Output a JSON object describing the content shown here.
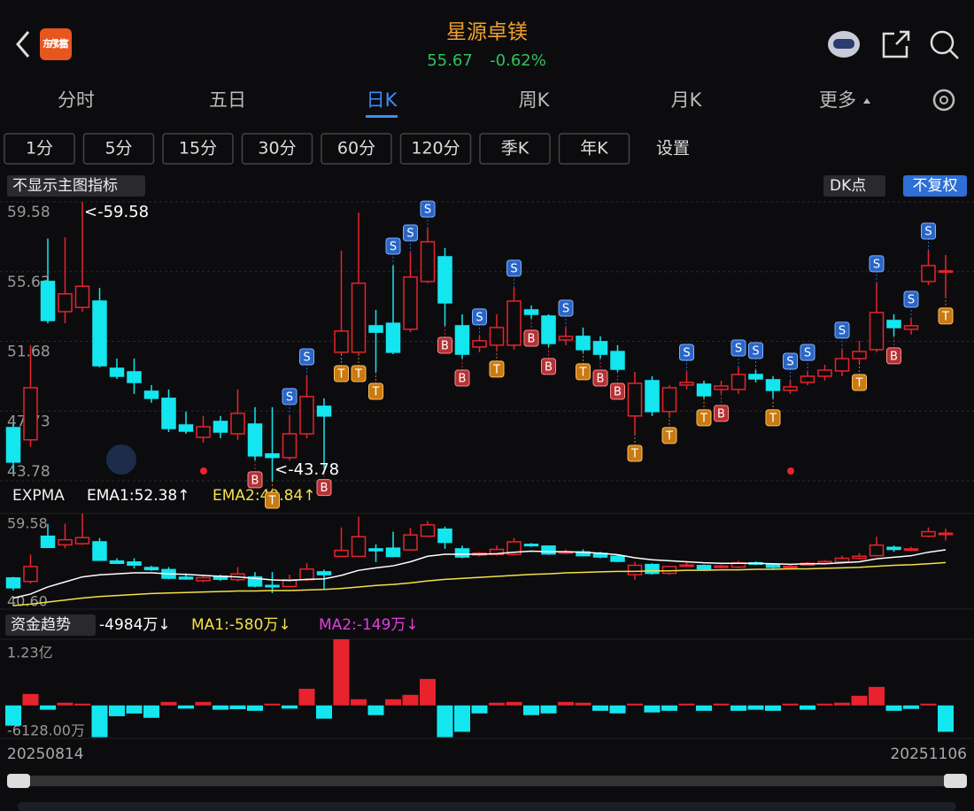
{
  "header": {
    "logo": "东方财富",
    "title": "星源卓镁",
    "price": "55.67",
    "change": "-0.62%"
  },
  "tabs": [
    "分时",
    "五日",
    "日K",
    "周K",
    "月K",
    "更多"
  ],
  "periods": [
    "1分",
    "5分",
    "15分",
    "30分",
    "60分",
    "120分",
    "季K",
    "年K",
    "设置"
  ],
  "toolbar": {
    "indicator": "不显示主图指标",
    "dk": "DK点",
    "adjust": "不复权"
  },
  "main_chart": {
    "type": "candlestick",
    "ylim": [
      43.78,
      59.58
    ],
    "yticks": [
      59.58,
      55.63,
      51.68,
      47.73,
      43.78
    ],
    "annotations": [
      "<-59.58",
      "<-43.78"
    ],
    "candles": [
      [
        46.79,
        47.0,
        44.3,
        44.84
      ],
      [
        46.1,
        51.46,
        45.7,
        49.05
      ],
      [
        55.07,
        57.5,
        52.7,
        52.86
      ],
      [
        53.36,
        57.57,
        52.7,
        54.37
      ],
      [
        53.6,
        59.58,
        53.36,
        54.8
      ],
      [
        53.96,
        54.7,
        50.2,
        50.3
      ],
      [
        50.15,
        50.7,
        49.55,
        49.7
      ],
      [
        49.95,
        50.7,
        48.7,
        49.35
      ],
      [
        48.85,
        49.2,
        48.2,
        48.45
      ],
      [
        48.45,
        48.95,
        46.54,
        46.74
      ],
      [
        46.94,
        47.7,
        46.44,
        46.59
      ],
      [
        46.24,
        47.45,
        45.94,
        46.84
      ],
      [
        47.14,
        47.45,
        46.19,
        46.54
      ],
      [
        46.44,
        48.95,
        46.1,
        47.6
      ],
      [
        46.99,
        47.95,
        44.94,
        45.19
      ],
      [
        45.3,
        47.95,
        43.78,
        45.1
      ],
      [
        45.09,
        47.45,
        44.94,
        46.44
      ],
      [
        46.44,
        49.7,
        46.19,
        48.55
      ],
      [
        48.0,
        48.45,
        44.5,
        47.45
      ],
      [
        51.06,
        56.82,
        50.95,
        52.26
      ],
      [
        51.06,
        58.97,
        50.95,
        54.97
      ],
      [
        52.56,
        53.46,
        49.95,
        52.2
      ],
      [
        52.7,
        55.97,
        50.95,
        51.06
      ],
      [
        52.36,
        56.72,
        52.2,
        55.32
      ],
      [
        55.07,
        58.07,
        54.97,
        57.32
      ],
      [
        56.47,
        56.97,
        52.56,
        53.86
      ],
      [
        52.56,
        53.21,
        50.7,
        50.95
      ],
      [
        51.36,
        51.96,
        51.06,
        51.71
      ],
      [
        51.46,
        53.21,
        51.21,
        52.46
      ],
      [
        51.46,
        54.72,
        51.21,
        53.96
      ],
      [
        53.46,
        53.71,
        52.96,
        53.21
      ],
      [
        53.11,
        53.21,
        51.36,
        51.56
      ],
      [
        51.76,
        52.46,
        51.46,
        51.96
      ],
      [
        51.96,
        52.46,
        51.06,
        51.21
      ],
      [
        51.66,
        51.96,
        50.7,
        50.95
      ],
      [
        51.1,
        51.46,
        49.95,
        50.1
      ],
      [
        47.45,
        49.95,
        46.44,
        49.3
      ],
      [
        49.45,
        49.7,
        47.45,
        47.7
      ],
      [
        47.7,
        49.2,
        47.45,
        49.05
      ],
      [
        49.2,
        49.95,
        48.95,
        49.35
      ],
      [
        49.25,
        49.45,
        48.45,
        48.6
      ],
      [
        48.95,
        49.45,
        48.7,
        49.15
      ],
      [
        48.95,
        50.2,
        48.7,
        49.8
      ],
      [
        49.8,
        50.05,
        49.35,
        49.55
      ],
      [
        49.5,
        49.7,
        48.45,
        48.9
      ],
      [
        48.9,
        49.45,
        48.7,
        49.1
      ],
      [
        49.35,
        49.95,
        49.2,
        49.7
      ],
      [
        49.7,
        50.35,
        49.45,
        50.05
      ],
      [
        50.0,
        51.21,
        49.7,
        50.7
      ],
      [
        50.7,
        51.7,
        50.45,
        51.1
      ],
      [
        51.21,
        54.97,
        51.06,
        53.31
      ],
      [
        52.86,
        53.21,
        51.96,
        52.46
      ],
      [
        52.36,
        52.96,
        52.06,
        52.56
      ],
      [
        55.07,
        56.82,
        54.87,
        55.97
      ],
      [
        55.62,
        56.57,
        54.22,
        55.67
      ]
    ],
    "signals": [
      {
        "i": 14,
        "label": "B"
      },
      {
        "i": 15,
        "label": "T"
      },
      {
        "i": 16,
        "label": "S"
      },
      {
        "i": 17,
        "label": "S"
      },
      {
        "i": 18,
        "label": "B"
      },
      {
        "i": 19,
        "label": "T"
      },
      {
        "i": 20,
        "label": "T"
      },
      {
        "i": 21,
        "label": "T"
      },
      {
        "i": 22,
        "label": "S"
      },
      {
        "i": 23,
        "label": "S"
      },
      {
        "i": 24,
        "label": "S"
      },
      {
        "i": 25,
        "label": "B"
      },
      {
        "i": 26,
        "label": "B"
      },
      {
        "i": 27,
        "label": "S"
      },
      {
        "i": 28,
        "label": "T"
      },
      {
        "i": 29,
        "label": "S"
      },
      {
        "i": 30,
        "label": "B"
      },
      {
        "i": 31,
        "label": "B"
      },
      {
        "i": 32,
        "label": "S"
      },
      {
        "i": 33,
        "label": "T"
      },
      {
        "i": 34,
        "label": "B"
      },
      {
        "i": 35,
        "label": "B"
      },
      {
        "i": 36,
        "label": "T"
      },
      {
        "i": 38,
        "label": "T"
      },
      {
        "i": 39,
        "label": "S"
      },
      {
        "i": 40,
        "label": "T"
      },
      {
        "i": 41,
        "label": "B"
      },
      {
        "i": 42,
        "label": "S"
      },
      {
        "i": 43,
        "label": "S"
      },
      {
        "i": 44,
        "label": "T"
      },
      {
        "i": 45,
        "label": "S"
      },
      {
        "i": 46,
        "label": "S"
      },
      {
        "i": 48,
        "label": "S"
      },
      {
        "i": 49,
        "label": "T"
      },
      {
        "i": 50,
        "label": "S"
      },
      {
        "i": 51,
        "label": "B"
      },
      {
        "i": 52,
        "label": "S"
      },
      {
        "i": 53,
        "label": "S"
      },
      {
        "i": 54,
        "label": "T"
      }
    ]
  },
  "ema_panel": {
    "name": "EXPMA",
    "ema1_label": "EMA1:52.38↑",
    "ema2_label": "EMA2:49.84↑",
    "ylim": [
      40.6,
      59.58
    ],
    "yticks": [
      59.58,
      {
        "value": 40.6,
        "label": "40.60"
      }
    ],
    "ema1": [
      42.8,
      43.6,
      45.0,
      46.0,
      47.0,
      47.4,
      47.6,
      47.8,
      47.8,
      47.6,
      47.5,
      47.3,
      47.1,
      47.0,
      46.7,
      46.4,
      46.3,
      46.5,
      46.6,
      47.3,
      48.3,
      48.8,
      49.2,
      50.0,
      51.1,
      51.5,
      51.5,
      51.5,
      51.6,
      51.9,
      52.1,
      52.0,
      52.0,
      51.9,
      51.7,
      51.4,
      50.8,
      50.4,
      50.2,
      50.0,
      49.8,
      49.7,
      49.7,
      49.7,
      49.6,
      49.5,
      49.6,
      49.6,
      49.8,
      50.0,
      50.6,
      50.9,
      51.2,
      51.9,
      52.38
    ],
    "ema2": [
      41.3,
      41.6,
      42.0,
      42.4,
      42.8,
      43.1,
      43.3,
      43.5,
      43.7,
      43.8,
      43.9,
      44.0,
      44.1,
      44.2,
      44.2,
      44.3,
      44.3,
      44.4,
      44.5,
      44.7,
      45.0,
      45.3,
      45.5,
      45.8,
      46.2,
      46.5,
      46.7,
      46.9,
      47.1,
      47.3,
      47.5,
      47.6,
      47.8,
      47.9,
      48.0,
      48.1,
      48.1,
      48.2,
      48.2,
      48.3,
      48.3,
      48.4,
      48.4,
      48.5,
      48.5,
      48.6,
      48.6,
      48.7,
      48.8,
      48.9,
      49.1,
      49.3,
      49.4,
      49.6,
      49.84
    ]
  },
  "fund_panel": {
    "type": "bar",
    "name": "资金趋势",
    "value_label": "-4984万↓",
    "ma1_label": "MA1:-580万↓",
    "ma2_label": "MA2:-149万↓",
    "ylim": [
      -6128,
      12300
    ],
    "yticks": [
      {
        "value": 12300,
        "label": "1.23亿"
      },
      {
        "value": -6128,
        "label": "-6128.00万"
      }
    ],
    "values": [
      -3770,
      2130,
      -800,
      500,
      330,
      -5900,
      -2000,
      -1500,
      -2300,
      650,
      -600,
      650,
      -800,
      -700,
      -1000,
      330,
      -600,
      3100,
      -2460,
      12300,
      1150,
      -1800,
      1150,
      1970,
      4920,
      -5900,
      -4900,
      -1480,
      500,
      650,
      -1800,
      -1480,
      650,
      500,
      -1000,
      -1480,
      330,
      -1300,
      -1000,
      330,
      -1000,
      330,
      -1000,
      -800,
      -1000,
      330,
      -800,
      330,
      500,
      1800,
      3440,
      -1000,
      -650,
      330,
      -4900
    ]
  },
  "dates": [
    "20250814",
    "20251106"
  ]
}
